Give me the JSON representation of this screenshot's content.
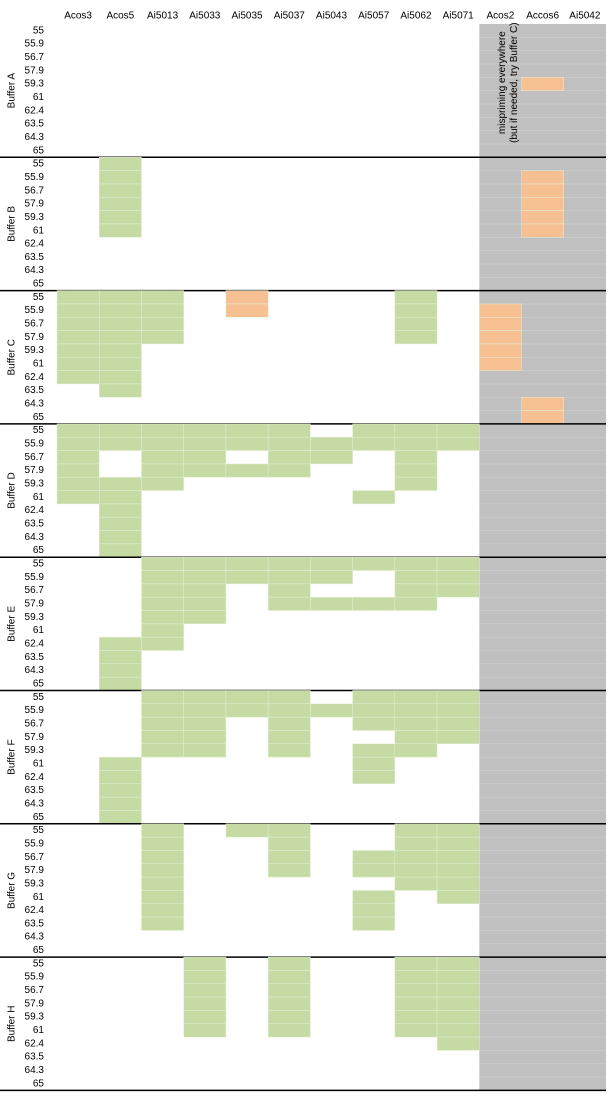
{
  "primers": [
    "Acos3",
    "Acos5",
    "Ai5013",
    "Ai5033",
    "Ai5035",
    "Ai5037",
    "Ai5043",
    "Ai5057",
    "Ai5062",
    "Ai5071",
    "Acos2",
    "Accos6",
    "Ai5042"
  ],
  "temperatures": [
    "55",
    "55.9",
    "56.7",
    "57.9",
    "59.3",
    "61",
    "62.4",
    "63.5",
    "64.3",
    "65"
  ],
  "note": [
    "mispriming everywhere",
    "(but if needed, try Buffer C)"
  ],
  "colors": {
    "G": "#c5dba3",
    "O": "#f7c093"
  },
  "buffers": [
    {
      "name": "Buffer A",
      "rows": [
        ".............",
        ".............",
        ".............",
        ".............",
        "...........O.",
        ".............",
        ".............",
        ".............",
        ".............",
        "............."
      ]
    },
    {
      "name": "Buffer B",
      "rows": [
        ".G...........",
        ".G.........O.",
        ".G.........O.",
        ".G.........O.",
        ".G.........O.",
        ".G.........O.",
        ".............",
        ".............",
        ".............",
        "............."
      ]
    },
    {
      "name": "Buffer C",
      "rows": [
        "GGG.O...G....",
        "GGG.O...G.O..",
        "GGG.....G.O..",
        "GGG.....G.O..",
        "GG........O..",
        "GG........O..",
        "GG...........",
        ".G...........",
        "...........O.",
        "...........O."
      ]
    },
    {
      "name": "Buffer D",
      "rows": [
        "GGGGGG.GGG...",
        "GGGGGGGGGG...",
        "G.GG.GG.G....",
        "G.GGGG..G....",
        "GGG.....G....",
        "GG.....G.....",
        ".G...........",
        ".G...........",
        ".G...........",
        ".G..........."
      ]
    },
    {
      "name": "Buffer E",
      "rows": [
        "..GGGGGGGG...",
        "..GGGGG.GG...",
        "..GG.G..GG...",
        "..GG.GGGG....",
        "..GG.........",
        "..G..........",
        ".GG..........",
        ".G...........",
        ".G...........",
        ".G..........."
      ]
    },
    {
      "name": "Buffer F",
      "rows": [
        "..GGGG.GGG...",
        "..GGGGGGGG...",
        "..GG.G.GGG...",
        "..GG.G..GG...",
        "..GG.G.GG....",
        ".G.....G.....",
        ".G.....G.....",
        ".G...........",
        ".G...........",
        ".G..........."
      ]
    },
    {
      "name": "Buffer G",
      "rows": [
        "..G.GG..GG...",
        "..G..G..GG...",
        "..G..G.GGG...",
        "..G..G.GGG...",
        "..G.....GG...",
        "..G....G.G...",
        "..G....G.....",
        "..G....G.....",
        ".............",
        "............."
      ]
    },
    {
      "name": "Buffer H",
      "rows": [
        "...G.G..GG...",
        "...G.G..GG...",
        "...G.G..GG...",
        "...G.G..GG...",
        "...G.G..GG...",
        "...G.G..GG...",
        ".........G...",
        ".............",
        ".............",
        "............."
      ]
    }
  ]
}
